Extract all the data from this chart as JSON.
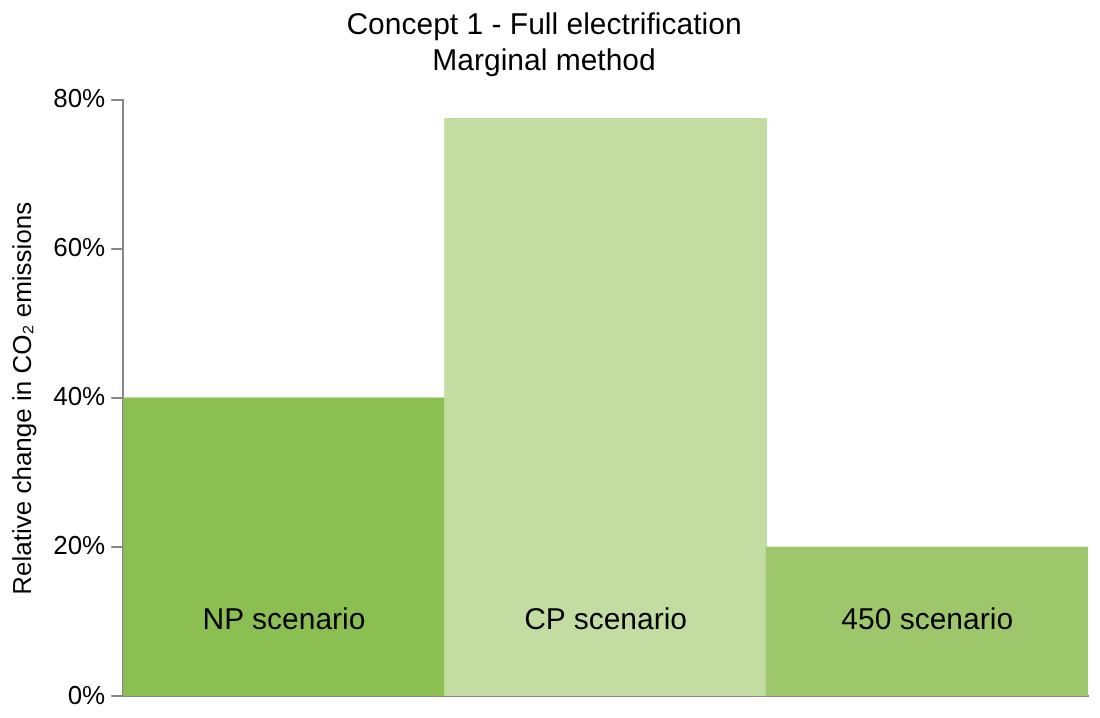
{
  "chart_data": {
    "type": "bar",
    "title": "Concept 1 - Full electrification",
    "subtitle": "Marginal method",
    "ylabel": "Relative change in CO₂ emissions",
    "categories": [
      "NP scenario",
      "CP scenario",
      "450 scenario"
    ],
    "values": [
      40,
      77.5,
      20
    ],
    "colors": [
      "#8cbf52",
      "#c2dca2",
      "#9ec76c"
    ],
    "ylim": [
      0,
      80
    ],
    "yticks": [
      {
        "value": 0,
        "label": "0%"
      },
      {
        "value": 20,
        "label": "20%"
      },
      {
        "value": 40,
        "label": "40%"
      },
      {
        "value": 60,
        "label": "60%"
      },
      {
        "value": 80,
        "label": "80%"
      }
    ],
    "grid": false,
    "legend": false,
    "tick_labels": "y"
  }
}
